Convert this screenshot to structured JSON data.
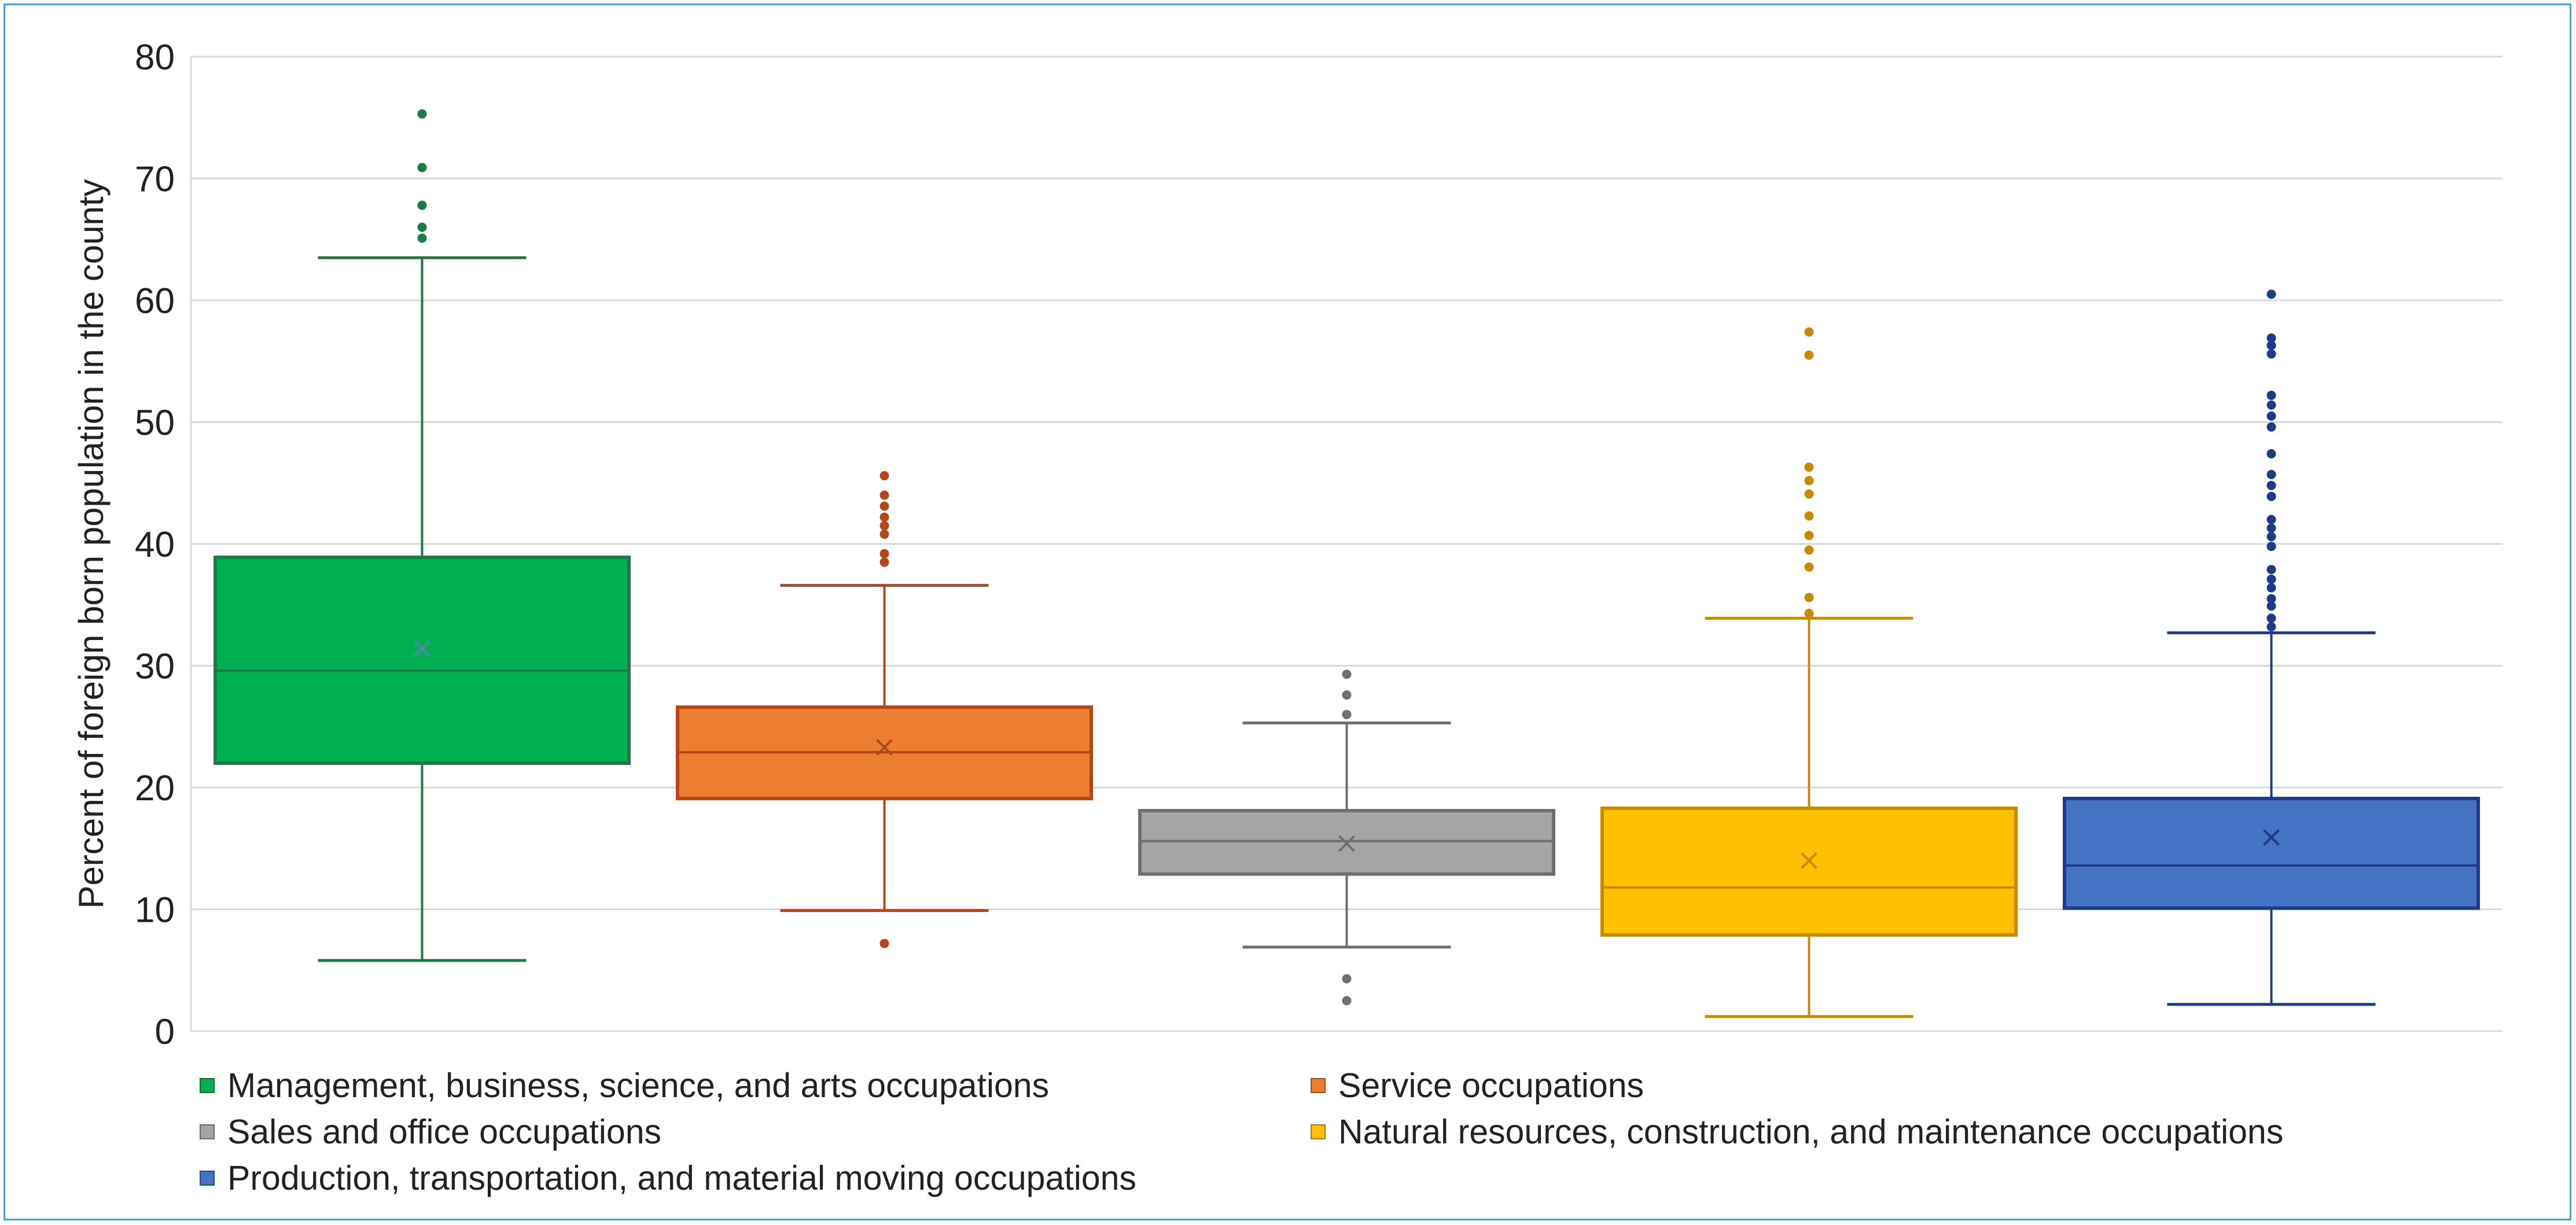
{
  "chart_data": {
    "type": "boxplot",
    "ylabel": "Percent of foreign born population in the county",
    "ylim": [
      0,
      80
    ],
    "yticks": [
      0,
      10,
      20,
      30,
      40,
      50,
      60,
      70,
      80
    ],
    "grid": true,
    "legend_position": "bottom",
    "series": [
      {
        "name": "Management, business, science, and arts occupations",
        "color": "#00b050",
        "stroke": "#1e7a48",
        "mean_color": "#4a8ab0",
        "min": 5.8,
        "q1": 22.0,
        "median": 29.6,
        "mean": 31.4,
        "q3": 38.9,
        "max": 63.5,
        "outliers": [
          65.1,
          66.0,
          67.8,
          70.9,
          75.3
        ]
      },
      {
        "name": "Service occupations",
        "color": "#ed7d31",
        "stroke": "#b5461b",
        "mean_color": "#a64a20",
        "min": 9.9,
        "q1": 19.1,
        "median": 22.9,
        "mean": 23.3,
        "q3": 26.6,
        "max": 36.6,
        "outliers": [
          7.2,
          38.5,
          39.2,
          40.8,
          41.5,
          42.2,
          43.1,
          44.0,
          45.6
        ]
      },
      {
        "name": "Sales and office occupations",
        "color": "#a5a5a5",
        "stroke": "#6f6f6f",
        "mean_color": "#6f6f6f",
        "min": 6.9,
        "q1": 12.9,
        "median": 15.6,
        "mean": 15.4,
        "q3": 18.1,
        "max": 25.3,
        "outliers": [
          2.5,
          4.3,
          26.0,
          27.6,
          29.3
        ]
      },
      {
        "name": "Natural resources, construction, and maintenance occupations",
        "color": "#ffc000",
        "stroke": "#c88a00",
        "mean_color": "#c88a00",
        "min": 1.2,
        "q1": 7.9,
        "median": 11.8,
        "mean": 14.0,
        "q3": 18.3,
        "max": 33.9,
        "outliers": [
          34.3,
          35.6,
          38.1,
          39.5,
          40.7,
          42.3,
          44.1,
          45.2,
          46.3,
          55.5,
          57.4
        ]
      },
      {
        "name": "Production, transportation, and material moving occupations",
        "color": "#4472c4",
        "stroke": "#203a8a",
        "mean_color": "#203a8a",
        "min": 2.2,
        "q1": 10.1,
        "median": 13.6,
        "mean": 15.9,
        "q3": 19.1,
        "max": 32.7,
        "outliers": [
          33.2,
          33.9,
          34.9,
          35.5,
          36.4,
          37.1,
          37.9,
          39.8,
          40.6,
          41.3,
          42.0,
          43.9,
          44.8,
          45.7,
          47.4,
          49.6,
          50.5,
          51.4,
          52.2,
          55.6,
          56.3,
          56.9,
          60.5
        ]
      }
    ]
  }
}
